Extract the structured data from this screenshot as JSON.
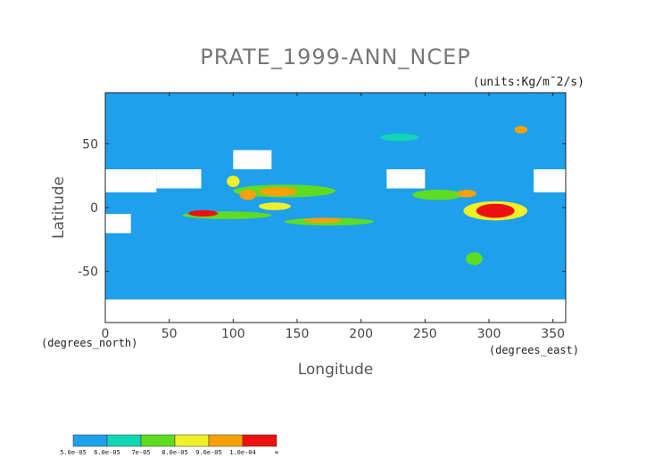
{
  "chart_data": {
    "type": "heatmap",
    "title": "PRATE_1999-ANN_NCEP",
    "units": "(units:Kg/m¯2/s)",
    "xlabel": "Longitude",
    "ylabel": "Latitude",
    "xlabel_sub": "(degrees_east)",
    "ylabel_sub": "(degrees_north)",
    "xlim": [
      0,
      360
    ],
    "ylim": [
      -90,
      90
    ],
    "xticks": [
      0,
      50,
      100,
      150,
      200,
      250,
      300,
      350
    ],
    "yticks": [
      -50,
      0,
      50
    ],
    "colorbar": {
      "colors": [
        "#1ea0ec",
        "#10d6b4",
        "#5edc22",
        "#f0f028",
        "#f7a10a",
        "#ee1010"
      ],
      "labels": [
        "5.0e-05",
        "6.0e-05",
        "7e-05",
        "8.0e-05",
        "9.0e-05",
        "1.0e-04",
        "∞"
      ]
    },
    "background_level": "5.0e-05",
    "missing_color": "#ffffff",
    "features": [
      {
        "kind": "band",
        "lon": [
          60,
          130
        ],
        "lat": [
          -9,
          -3
        ],
        "level": 2
      },
      {
        "kind": "blob",
        "lon": [
          65,
          88
        ],
        "lat": [
          -7,
          -2
        ],
        "level": 5
      },
      {
        "kind": "band",
        "lon": [
          100,
          180
        ],
        "lat": [
          8,
          18
        ],
        "level": 2
      },
      {
        "kind": "blob",
        "lon": [
          120,
          150
        ],
        "lat": [
          9,
          16
        ],
        "level": 4
      },
      {
        "kind": "blob",
        "lon": [
          105,
          118
        ],
        "lat": [
          6,
          14
        ],
        "level": 4
      },
      {
        "kind": "blob",
        "lon": [
          95,
          105
        ],
        "lat": [
          16,
          25
        ],
        "level": 3
      },
      {
        "kind": "band",
        "lon": [
          140,
          210
        ],
        "lat": [
          -14,
          -8
        ],
        "level": 2
      },
      {
        "kind": "blob",
        "lon": [
          155,
          185
        ],
        "lat": [
          -12,
          -8
        ],
        "level": 4
      },
      {
        "kind": "blob",
        "lon": [
          120,
          145
        ],
        "lat": [
          -2,
          4
        ],
        "level": 3
      },
      {
        "kind": "band",
        "lon": [
          240,
          280
        ],
        "lat": [
          6,
          14
        ],
        "level": 2
      },
      {
        "kind": "blob",
        "lon": [
          275,
          290
        ],
        "lat": [
          8,
          14
        ],
        "level": 4
      },
      {
        "kind": "band",
        "lon": [
          280,
          330
        ],
        "lat": [
          -10,
          5
        ],
        "level": 3
      },
      {
        "kind": "blob",
        "lon": [
          290,
          320
        ],
        "lat": [
          -8,
          3
        ],
        "level": 5
      },
      {
        "kind": "blob",
        "lon": [
          282,
          295
        ],
        "lat": [
          -45,
          -35
        ],
        "level": 2
      },
      {
        "kind": "blob",
        "lon": [
          320,
          330
        ],
        "lat": [
          58,
          64
        ],
        "level": 4
      },
      {
        "kind": "blob",
        "lon": [
          215,
          245
        ],
        "lat": [
          52,
          58
        ],
        "level": 1
      }
    ],
    "missing_regions": [
      {
        "lon": [
          0,
          40
        ],
        "lat": [
          12,
          30
        ]
      },
      {
        "lon": [
          40,
          75
        ],
        "lat": [
          15,
          30
        ]
      },
      {
        "lon": [
          100,
          130
        ],
        "lat": [
          30,
          45
        ]
      },
      {
        "lon": [
          0,
          20
        ],
        "lat": [
          -20,
          -5
        ]
      },
      {
        "lon": [
          220,
          250
        ],
        "lat": [
          15,
          30
        ]
      },
      {
        "lon": [
          335,
          360
        ],
        "lat": [
          12,
          30
        ]
      },
      {
        "lon": [
          0,
          360
        ],
        "lat": [
          -90,
          -72
        ]
      }
    ]
  }
}
